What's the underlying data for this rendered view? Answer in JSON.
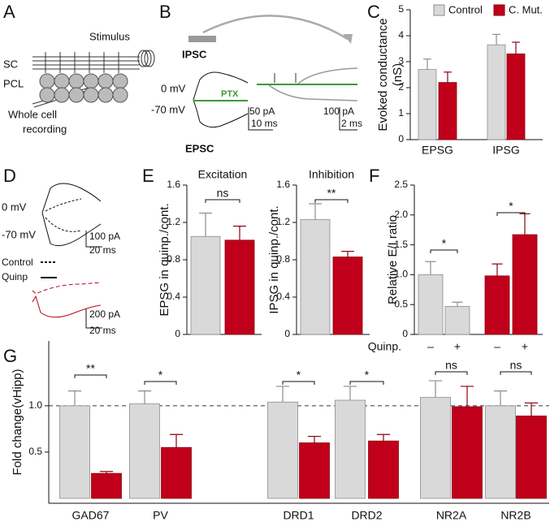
{
  "figure": {
    "panel_labels": [
      "A",
      "B",
      "C",
      "D",
      "E",
      "F",
      "G"
    ],
    "panel_a": [
      "Stimulus",
      "SC",
      "PCL",
      "Whole cell",
      "recording"
    ],
    "panel_b": [
      "IPSC",
      "0 mV",
      "-70 mV",
      "PTX",
      "EPSC",
      "50 pA",
      "10 ms",
      "100 pA",
      "2 ms"
    ],
    "panel_d": [
      "0 mV",
      "-70 mV",
      "100 pA",
      "20 ms",
      "Control",
      "Quinp",
      "200 pA",
      "20 ms"
    ]
  },
  "chart_data": [
    {
      "type": "bar",
      "ylabel": [
        "Evoked conductance",
        "(nS)"
      ],
      "categories": [
        "EPSG",
        "IPSG"
      ],
      "series": [
        {
          "name": "Control",
          "color": "#d9d9d9",
          "edgecolor": "#8c8c8c",
          "values": [
            2.7,
            3.65
          ],
          "errors": [
            0.4,
            0.4
          ]
        },
        {
          "name": "C. Mut.",
          "color": "#c0001a",
          "edgecolor": "#8a0012",
          "values": [
            2.2,
            3.3
          ],
          "errors": [
            0.4,
            0.45
          ]
        }
      ],
      "ylim": [
        0,
        5
      ],
      "yticks": [
        0,
        1,
        2,
        3,
        4,
        5
      ]
    },
    {
      "type": "bar",
      "title": "Excitation",
      "ylabel": [
        "EPSG in quinp./cont."
      ],
      "values": [
        1.05,
        1.01
      ],
      "errors": [
        0.25,
        0.15
      ],
      "colors": [
        "#d9d9d9",
        "#c0001a"
      ],
      "edgecolors": [
        "#8c8c8c",
        "#8a0012"
      ],
      "annotations": [
        "ns"
      ],
      "ylim": [
        0,
        1.6
      ],
      "yticks": [
        0,
        0.4,
        0.8,
        1.2,
        1.6
      ]
    },
    {
      "type": "bar",
      "title": "Inhibition",
      "ylabel": [
        "IPSG in quinp./cont."
      ],
      "values": [
        1.23,
        0.83
      ],
      "errors": [
        0.17,
        0.06
      ],
      "colors": [
        "#d9d9d9",
        "#c0001a"
      ],
      "edgecolors": [
        "#8c8c8c",
        "#8a0012"
      ],
      "annotations": [
        "**"
      ],
      "ylim": [
        0,
        1.6
      ],
      "yticks": [
        0,
        0.4,
        0.8,
        1.2,
        1.6
      ]
    },
    {
      "type": "bar",
      "ylabel": [
        "Relative E/I ratio"
      ],
      "xlabel": "Quinp.",
      "categories": [
        "–",
        "+",
        "–",
        "+"
      ],
      "values": [
        1.0,
        0.47,
        0.98,
        1.67
      ],
      "errors": [
        0.22,
        0.07,
        0.2,
        0.35
      ],
      "colors": [
        "#d9d9d9",
        "#d9d9d9",
        "#c0001a",
        "#c0001a"
      ],
      "edgecolors": [
        "#8c8c8c",
        "#8c8c8c",
        "#8a0012",
        "#8a0012"
      ],
      "annotations": [
        "*",
        "*"
      ],
      "ylim": [
        0,
        2.5
      ],
      "yticks": [
        0,
        0.5,
        {
          "value": 1,
          "label": "1.0"
        },
        1.5,
        {
          "value": 2,
          "label": "2.0"
        },
        2.5
      ]
    },
    {
      "type": "bar",
      "ylabel": [
        "Fold change(vHipp)"
      ],
      "categories": [
        "GAD67",
        "PV",
        "DRD1",
        "DRD2",
        "NR2A",
        "NR2B"
      ],
      "series": [
        {
          "name": "Control",
          "color": "#d9d9d9",
          "edgecolor": "#8c8c8c",
          "values": [
            1.0,
            1.02,
            1.04,
            1.06,
            1.09,
            1.0
          ],
          "errors": [
            0.16,
            0.14,
            0.17,
            0.15,
            0.18,
            0.16
          ]
        },
        {
          "name": "C. Mut.",
          "color": "#c0001a",
          "edgecolor": "#8a0012",
          "values": [
            0.27,
            0.55,
            0.6,
            0.62,
            0.99,
            0.89
          ],
          "errors": [
            0.02,
            0.14,
            0.07,
            0.07,
            0.22,
            0.14
          ]
        }
      ],
      "annotations": [
        "**",
        "*",
        "*",
        "*",
        "ns",
        "ns"
      ],
      "reference_line": 1,
      "ylim": [
        0,
        1.7
      ],
      "yticks": [
        0.5,
        {
          "value": 1,
          "label": "1.0"
        }
      ]
    }
  ]
}
